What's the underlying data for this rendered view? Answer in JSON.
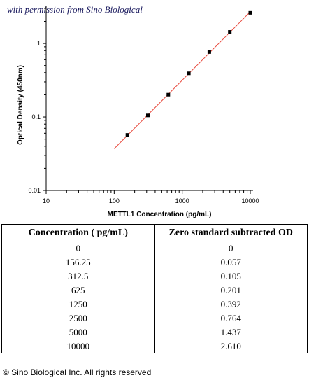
{
  "watermark": "with permission from Sino Biological",
  "chart_data": {
    "type": "scatter",
    "xscale": "log",
    "yscale": "log",
    "xlabel": "METTL1 Concentration (pg/mL)",
    "ylabel": "Optical Density (450nm)",
    "xlim": [
      10,
      10000
    ],
    "ylim": [
      0.01,
      3
    ],
    "x_ticks": [
      "10",
      "100",
      "1000",
      "10000"
    ],
    "y_ticks": [
      "0.01",
      "0.1",
      "1"
    ],
    "points": [
      {
        "x": 156.25,
        "y": 0.057
      },
      {
        "x": 312.5,
        "y": 0.105
      },
      {
        "x": 625,
        "y": 0.201
      },
      {
        "x": 1250,
        "y": 0.392
      },
      {
        "x": 2500,
        "y": 0.764
      },
      {
        "x": 5000,
        "y": 1.437
      },
      {
        "x": 10000,
        "y": 2.61
      }
    ],
    "fit_line": {
      "x": [
        100,
        10000
      ],
      "y": [
        0.037,
        2.7
      ]
    },
    "point_color": "#000000",
    "line_color": "#e8463a",
    "grid": false
  },
  "table": {
    "headers": [
      "Concentration ( pg/mL)",
      "Zero standard subtracted OD"
    ],
    "rows": [
      [
        "0",
        "0"
      ],
      [
        "156.25",
        "0.057"
      ],
      [
        "312.5",
        "0.105"
      ],
      [
        "625",
        "0.201"
      ],
      [
        "1250",
        "0.392"
      ],
      [
        "2500",
        "0.764"
      ],
      [
        "5000",
        "1.437"
      ],
      [
        "10000",
        "2.610"
      ]
    ]
  },
  "copyright": "© Sino Biological Inc. All rights reserved"
}
